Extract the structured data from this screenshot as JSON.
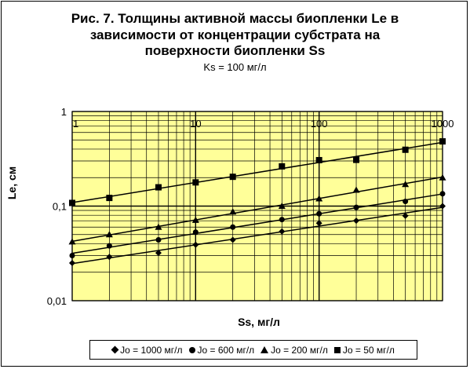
{
  "chart_data": {
    "type": "line",
    "title_lines": [
      "Рис. 7.  Толщины активной массы биопленки Le в",
      "зависимости от концентрации субстрата на",
      "поверхности биопленки Ss"
    ],
    "subtitle": "Ks = 100 мг/л",
    "xlabel": "Ss, мг/л",
    "ylabel": "Le, см",
    "x_scale": "log",
    "y_scale": "log",
    "xlim": [
      1,
      1000
    ],
    "ylim": [
      0.01,
      1
    ],
    "x_ticks": [
      "1",
      "10",
      "100",
      "1000"
    ],
    "y_ticks": [
      "1",
      "0,1",
      "0,01"
    ],
    "grid": true,
    "legend_position": "bottom",
    "background": "#ffff99",
    "series": [
      {
        "name": "Jo = 1000 мг/л",
        "marker": "diamond",
        "x": [
          1,
          2,
          5,
          10,
          20,
          50,
          100,
          200,
          500,
          1000
        ],
        "y": [
          0.025,
          0.029,
          0.032,
          0.039,
          0.044,
          0.054,
          0.066,
          0.07,
          0.079,
          0.1
        ]
      },
      {
        "name": "Jo = 600 мг/л",
        "marker": "circle",
        "x": [
          1,
          2,
          5,
          10,
          20,
          50,
          100,
          200,
          500,
          1000
        ],
        "y": [
          0.03,
          0.038,
          0.044,
          0.053,
          0.06,
          0.072,
          0.083,
          0.097,
          0.112,
          0.135
        ]
      },
      {
        "name": "Jo = 200 мг/л",
        "marker": "triangle",
        "x": [
          1,
          2,
          5,
          10,
          20,
          50,
          100,
          200,
          500,
          1000
        ],
        "y": [
          0.042,
          0.05,
          0.06,
          0.071,
          0.087,
          0.1,
          0.12,
          0.148,
          0.17,
          0.2
        ]
      },
      {
        "name": "Jo = 50 мг/л",
        "marker": "square",
        "x": [
          1,
          2,
          5,
          10,
          20,
          50,
          100,
          200,
          500,
          1000
        ],
        "y": [
          0.108,
          0.122,
          0.158,
          0.178,
          0.204,
          0.263,
          0.306,
          0.308,
          0.394,
          0.483
        ]
      }
    ]
  }
}
